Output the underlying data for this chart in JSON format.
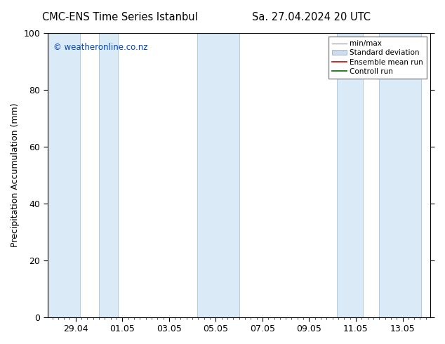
{
  "title_left": "CMC-ENS Time Series Istanbul",
  "title_right": "Sa. 27.04.2024 20 UTC",
  "ylabel": "Precipitation Accumulation (mm)",
  "watermark": "© weatheronline.co.nz",
  "ylim": [
    0,
    100
  ],
  "yticks": [
    0,
    20,
    40,
    60,
    80,
    100
  ],
  "xtick_labels": [
    "29.04",
    "01.05",
    "03.05",
    "05.05",
    "07.05",
    "09.05",
    "11.05",
    "13.05"
  ],
  "background_color": "#ffffff",
  "plot_bg_color": "#ffffff",
  "shaded_band_color": "#daeaf7",
  "legend_entries": [
    {
      "label": "min/max",
      "color": "#aaaaaa",
      "style": "error"
    },
    {
      "label": "Standard deviation",
      "color": "#bbccdd",
      "style": "fill"
    },
    {
      "label": "Ensemble mean run",
      "color": "#ff0000",
      "style": "line"
    },
    {
      "label": "Controll run",
      "color": "#007700",
      "style": "line"
    }
  ]
}
